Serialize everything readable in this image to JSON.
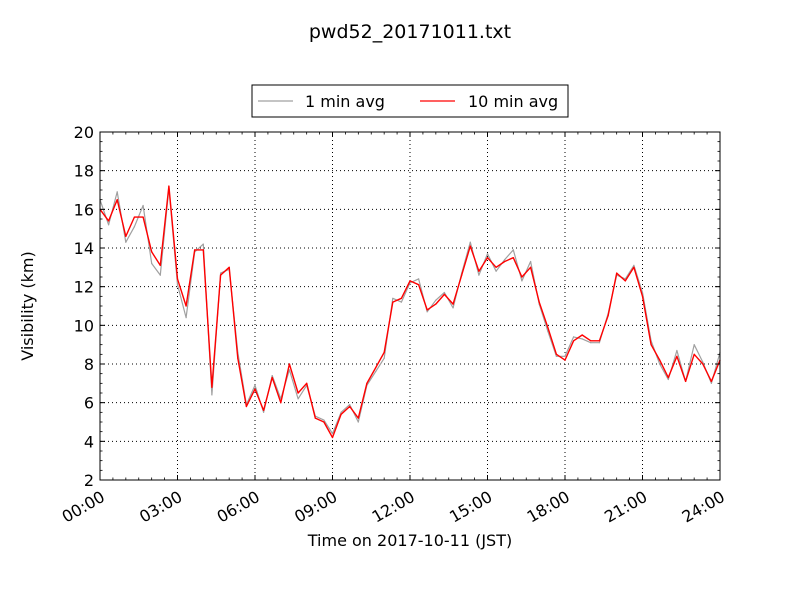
{
  "chart_data": {
    "type": "line",
    "title": "pwd52_20171011.txt",
    "xlabel": "Time on 2017-10-11 (JST)",
    "ylabel": "Visibility (km)",
    "xlim": [
      "00:00",
      "24:00"
    ],
    "ylim": [
      2,
      20
    ],
    "x_ticks": [
      "00:00",
      "03:00",
      "06:00",
      "09:00",
      "12:00",
      "15:00",
      "18:00",
      "21:00",
      "24:00"
    ],
    "y_ticks": [
      "2",
      "4",
      "6",
      "8",
      "10",
      "12",
      "14",
      "16",
      "18",
      "20"
    ],
    "grid": true,
    "legend_position": "top-center-outside",
    "series": [
      {
        "name": "1 min avg",
        "color": "#a0a0a0",
        "x": [
          "00:00",
          "00:20",
          "00:40",
          "01:00",
          "01:20",
          "01:40",
          "02:00",
          "02:20",
          "02:40",
          "03:00",
          "03:20",
          "03:40",
          "04:00",
          "04:20",
          "04:40",
          "05:00",
          "05:20",
          "05:40",
          "06:00",
          "06:20",
          "06:40",
          "07:00",
          "07:20",
          "07:40",
          "08:00",
          "08:20",
          "08:40",
          "09:00",
          "09:20",
          "09:40",
          "10:00",
          "10:20",
          "10:40",
          "11:00",
          "11:20",
          "11:40",
          "12:00",
          "12:20",
          "12:40",
          "13:00",
          "13:20",
          "13:40",
          "14:00",
          "14:20",
          "14:40",
          "15:00",
          "15:20",
          "15:40",
          "16:00",
          "16:20",
          "16:40",
          "17:00",
          "17:20",
          "17:40",
          "18:00",
          "18:20",
          "18:40",
          "19:00",
          "19:20",
          "19:40",
          "20:00",
          "20:20",
          "20:40",
          "21:00",
          "21:20",
          "21:40",
          "22:00",
          "22:20",
          "22:40",
          "23:00",
          "23:20",
          "23:40",
          "24:00"
        ],
        "values": [
          16.5,
          15.2,
          16.9,
          14.3,
          15.1,
          16.2,
          13.2,
          12.6,
          17.1,
          12.1,
          10.4,
          13.8,
          14.2,
          6.4,
          12.7,
          12.9,
          8.6,
          5.9,
          6.9,
          5.5,
          7.4,
          6.2,
          7.7,
          6.2,
          6.9,
          5.3,
          5.1,
          4.4,
          5.5,
          5.9,
          5.0,
          6.9,
          7.6,
          8.3,
          11.4,
          11.2,
          12.2,
          12.4,
          10.7,
          11.3,
          11.7,
          10.9,
          12.7,
          14.3,
          12.6,
          13.7,
          12.8,
          13.4,
          13.9,
          12.3,
          13.3,
          11.1,
          9.7,
          8.4,
          8.4,
          9.4,
          9.3,
          9.1,
          9.1,
          10.6,
          12.6,
          12.4,
          13.1,
          11.7,
          9.2,
          8.0,
          7.2,
          8.7,
          7.1,
          9.0,
          8.1,
          7.0,
          8.6
        ]
      },
      {
        "name": "10 min avg",
        "color": "#ff0000",
        "x": [
          "00:00",
          "00:20",
          "00:40",
          "01:00",
          "01:20",
          "01:40",
          "02:00",
          "02:20",
          "02:40",
          "03:00",
          "03:20",
          "03:40",
          "04:00",
          "04:20",
          "04:40",
          "05:00",
          "05:20",
          "05:40",
          "06:00",
          "06:20",
          "06:40",
          "07:00",
          "07:20",
          "07:40",
          "08:00",
          "08:20",
          "08:40",
          "09:00",
          "09:20",
          "09:40",
          "10:00",
          "10:20",
          "10:40",
          "11:00",
          "11:20",
          "11:40",
          "12:00",
          "12:20",
          "12:40",
          "13:00",
          "13:20",
          "13:40",
          "14:00",
          "14:20",
          "14:40",
          "15:00",
          "15:20",
          "15:40",
          "16:00",
          "16:20",
          "16:40",
          "17:00",
          "17:20",
          "17:40",
          "18:00",
          "18:20",
          "18:40",
          "19:00",
          "19:20",
          "19:40",
          "20:00",
          "20:20",
          "20:40",
          "21:00",
          "21:20",
          "21:40",
          "22:00",
          "22:20",
          "22:40",
          "23:00",
          "23:20",
          "23:40",
          "24:00"
        ],
        "values": [
          16.0,
          15.4,
          16.5,
          14.6,
          15.6,
          15.6,
          13.8,
          13.1,
          17.2,
          12.4,
          11.0,
          13.9,
          13.9,
          6.8,
          12.6,
          13.0,
          8.3,
          5.8,
          6.7,
          5.6,
          7.3,
          6.0,
          8.0,
          6.5,
          7.0,
          5.2,
          5.0,
          4.2,
          5.4,
          5.8,
          5.2,
          7.0,
          7.8,
          8.6,
          11.2,
          11.4,
          12.3,
          12.1,
          10.8,
          11.1,
          11.6,
          11.1,
          12.6,
          14.1,
          12.8,
          13.5,
          13.0,
          13.3,
          13.5,
          12.5,
          13.0,
          11.2,
          9.9,
          8.5,
          8.2,
          9.2,
          9.5,
          9.2,
          9.2,
          10.5,
          12.7,
          12.3,
          13.0,
          11.5,
          9.0,
          8.2,
          7.3,
          8.4,
          7.1,
          8.5,
          8.0,
          7.1,
          8.2
        ]
      }
    ]
  }
}
